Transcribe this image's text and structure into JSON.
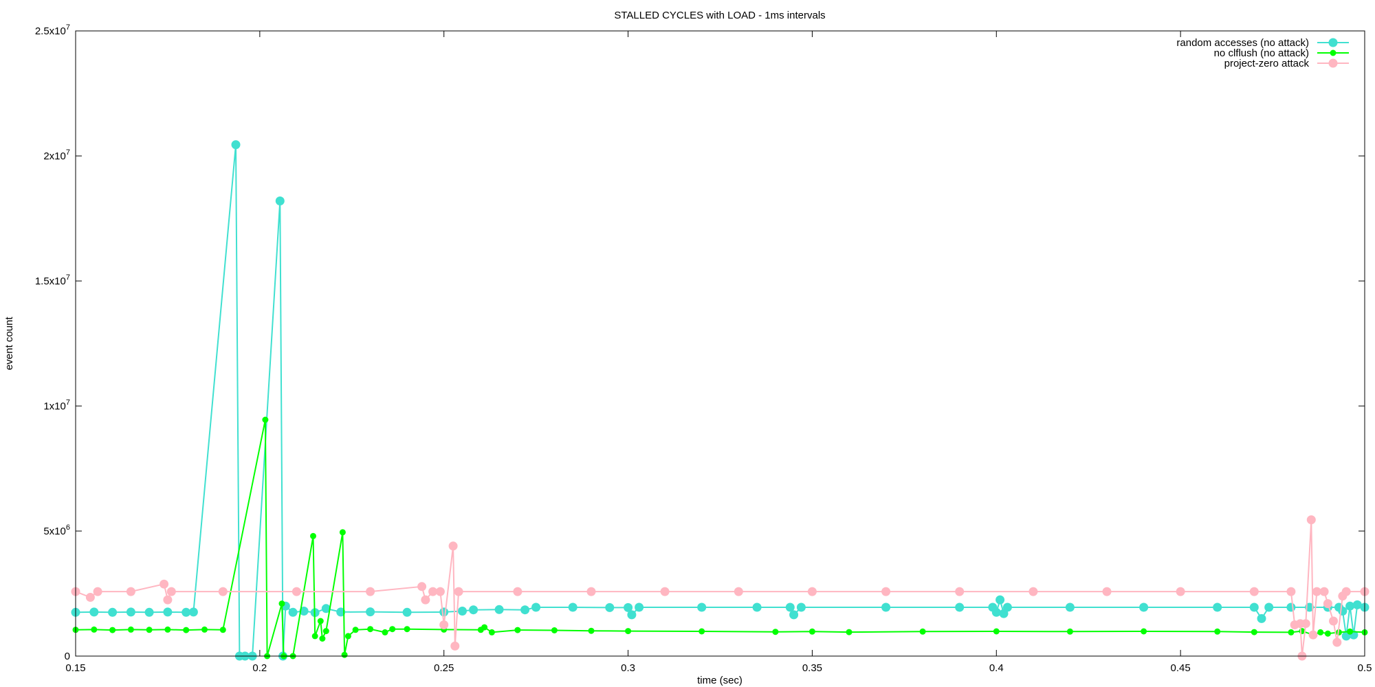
{
  "chart_data": {
    "type": "line",
    "title": "STALLED CYCLES with LOAD - 1ms intervals",
    "xlabel": "time (sec)",
    "ylabel": "event count",
    "xlim": [
      0.15,
      0.5
    ],
    "ylim": [
      0,
      25000000
    ],
    "x_ticks": [
      "0.15",
      "0.2",
      "0.25",
      "0.3",
      "0.35",
      "0.4",
      "0.45",
      "0.5"
    ],
    "y_ticks": [
      {
        "value": 0,
        "base": "0",
        "exp": ""
      },
      {
        "value": 5000000,
        "base": "5x10",
        "exp": "6"
      },
      {
        "value": 10000000,
        "base": "1x10",
        "exp": "7"
      },
      {
        "value": 15000000,
        "base": "1.5x10",
        "exp": "7"
      },
      {
        "value": 20000000,
        "base": "2x10",
        "exp": "7"
      },
      {
        "value": 25000000,
        "base": "2.5x10",
        "exp": "7"
      }
    ],
    "grid": false,
    "legend_position": "top-right",
    "series": [
      {
        "name": "random accesses (no attack)",
        "color": "#40e0d0",
        "marker": "large",
        "points": [
          [
            0.15,
            1750000
          ],
          [
            0.155,
            1760000
          ],
          [
            0.16,
            1750000
          ],
          [
            0.165,
            1760000
          ],
          [
            0.17,
            1750000
          ],
          [
            0.175,
            1760000
          ],
          [
            0.18,
            1750000
          ],
          [
            0.182,
            1760000
          ],
          [
            0.1935,
            20450000
          ],
          [
            0.1945,
            0
          ],
          [
            0.196,
            0
          ],
          [
            0.198,
            0
          ],
          [
            0.2055,
            18200000
          ],
          [
            0.2063,
            0
          ],
          [
            0.207,
            2000000
          ],
          [
            0.209,
            1750000
          ],
          [
            0.212,
            1800000
          ],
          [
            0.215,
            1740000
          ],
          [
            0.218,
            1900000
          ],
          [
            0.222,
            1760000
          ],
          [
            0.23,
            1770000
          ],
          [
            0.24,
            1750000
          ],
          [
            0.25,
            1760000
          ],
          [
            0.255,
            1800000
          ],
          [
            0.258,
            1850000
          ],
          [
            0.265,
            1860000
          ],
          [
            0.272,
            1850000
          ],
          [
            0.275,
            1950000
          ],
          [
            0.285,
            1950000
          ],
          [
            0.295,
            1940000
          ],
          [
            0.3,
            1940000
          ],
          [
            0.301,
            1650000
          ],
          [
            0.303,
            1950000
          ],
          [
            0.32,
            1950000
          ],
          [
            0.335,
            1950000
          ],
          [
            0.344,
            1950000
          ],
          [
            0.345,
            1650000
          ],
          [
            0.347,
            1950000
          ],
          [
            0.37,
            1950000
          ],
          [
            0.39,
            1950000
          ],
          [
            0.399,
            1950000
          ],
          [
            0.4,
            1750000
          ],
          [
            0.401,
            2250000
          ],
          [
            0.402,
            1700000
          ],
          [
            0.403,
            1950000
          ],
          [
            0.42,
            1950000
          ],
          [
            0.44,
            1950000
          ],
          [
            0.46,
            1950000
          ],
          [
            0.47,
            1950000
          ],
          [
            0.472,
            1500000
          ],
          [
            0.474,
            1950000
          ],
          [
            0.48,
            1950000
          ],
          [
            0.485,
            1950000
          ],
          [
            0.49,
            1950000
          ],
          [
            0.493,
            1950000
          ],
          [
            0.494,
            1800000
          ],
          [
            0.495,
            800000
          ],
          [
            0.496,
            2000000
          ],
          [
            0.497,
            850000
          ],
          [
            0.498,
            2050000
          ],
          [
            0.5,
            1950000
          ]
        ]
      },
      {
        "name": "no clflush (no attack)",
        "color": "#00ff00",
        "marker": "small",
        "points": [
          [
            0.15,
            1050000
          ],
          [
            0.155,
            1060000
          ],
          [
            0.16,
            1040000
          ],
          [
            0.165,
            1060000
          ],
          [
            0.17,
            1050000
          ],
          [
            0.175,
            1060000
          ],
          [
            0.18,
            1040000
          ],
          [
            0.185,
            1060000
          ],
          [
            0.19,
            1050000
          ],
          [
            0.2015,
            9450000
          ],
          [
            0.202,
            0
          ],
          [
            0.206,
            2100000
          ],
          [
            0.2065,
            0
          ],
          [
            0.209,
            0
          ],
          [
            0.2145,
            4800000
          ],
          [
            0.215,
            800000
          ],
          [
            0.2165,
            1400000
          ],
          [
            0.217,
            700000
          ],
          [
            0.218,
            1000000
          ],
          [
            0.2225,
            4950000
          ],
          [
            0.223,
            50000
          ],
          [
            0.224,
            800000
          ],
          [
            0.226,
            1050000
          ],
          [
            0.23,
            1080000
          ],
          [
            0.234,
            950000
          ],
          [
            0.236,
            1080000
          ],
          [
            0.24,
            1080000
          ],
          [
            0.25,
            1060000
          ],
          [
            0.26,
            1050000
          ],
          [
            0.261,
            1150000
          ],
          [
            0.263,
            950000
          ],
          [
            0.27,
            1040000
          ],
          [
            0.28,
            1030000
          ],
          [
            0.29,
            1010000
          ],
          [
            0.3,
            1000000
          ],
          [
            0.32,
            990000
          ],
          [
            0.34,
            970000
          ],
          [
            0.35,
            980000
          ],
          [
            0.36,
            960000
          ],
          [
            0.38,
            980000
          ],
          [
            0.4,
            990000
          ],
          [
            0.42,
            980000
          ],
          [
            0.44,
            990000
          ],
          [
            0.46,
            980000
          ],
          [
            0.47,
            960000
          ],
          [
            0.48,
            950000
          ],
          [
            0.483,
            1000000
          ],
          [
            0.486,
            850000
          ],
          [
            0.488,
            950000
          ],
          [
            0.49,
            900000
          ],
          [
            0.493,
            950000
          ],
          [
            0.496,
            980000
          ],
          [
            0.5,
            950000
          ]
        ]
      },
      {
        "name": "project-zero attack",
        "color": "#ffb6c1",
        "marker": "large",
        "points": [
          [
            0.15,
            2580000
          ],
          [
            0.154,
            2350000
          ],
          [
            0.156,
            2580000
          ],
          [
            0.165,
            2580000
          ],
          [
            0.174,
            2880000
          ],
          [
            0.175,
            2250000
          ],
          [
            0.176,
            2580000
          ],
          [
            0.19,
            2580000
          ],
          [
            0.21,
            2580000
          ],
          [
            0.23,
            2580000
          ],
          [
            0.244,
            2780000
          ],
          [
            0.245,
            2250000
          ],
          [
            0.247,
            2580000
          ],
          [
            0.249,
            2580000
          ],
          [
            0.25,
            1250000
          ],
          [
            0.2525,
            4400000
          ],
          [
            0.253,
            400000
          ],
          [
            0.254,
            2580000
          ],
          [
            0.27,
            2580000
          ],
          [
            0.29,
            2580000
          ],
          [
            0.31,
            2580000
          ],
          [
            0.33,
            2580000
          ],
          [
            0.35,
            2580000
          ],
          [
            0.37,
            2580000
          ],
          [
            0.39,
            2580000
          ],
          [
            0.41,
            2580000
          ],
          [
            0.43,
            2580000
          ],
          [
            0.45,
            2580000
          ],
          [
            0.47,
            2580000
          ],
          [
            0.48,
            2580000
          ],
          [
            0.481,
            1250000
          ],
          [
            0.4825,
            1300000
          ],
          [
            0.483,
            0
          ],
          [
            0.484,
            1300000
          ],
          [
            0.4855,
            5450000
          ],
          [
            0.486,
            850000
          ],
          [
            0.487,
            2580000
          ],
          [
            0.489,
            2580000
          ],
          [
            0.49,
            2100000
          ],
          [
            0.4915,
            1400000
          ],
          [
            0.4925,
            550000
          ],
          [
            0.494,
            2400000
          ],
          [
            0.495,
            2580000
          ],
          [
            0.5,
            2580000
          ]
        ]
      }
    ]
  }
}
